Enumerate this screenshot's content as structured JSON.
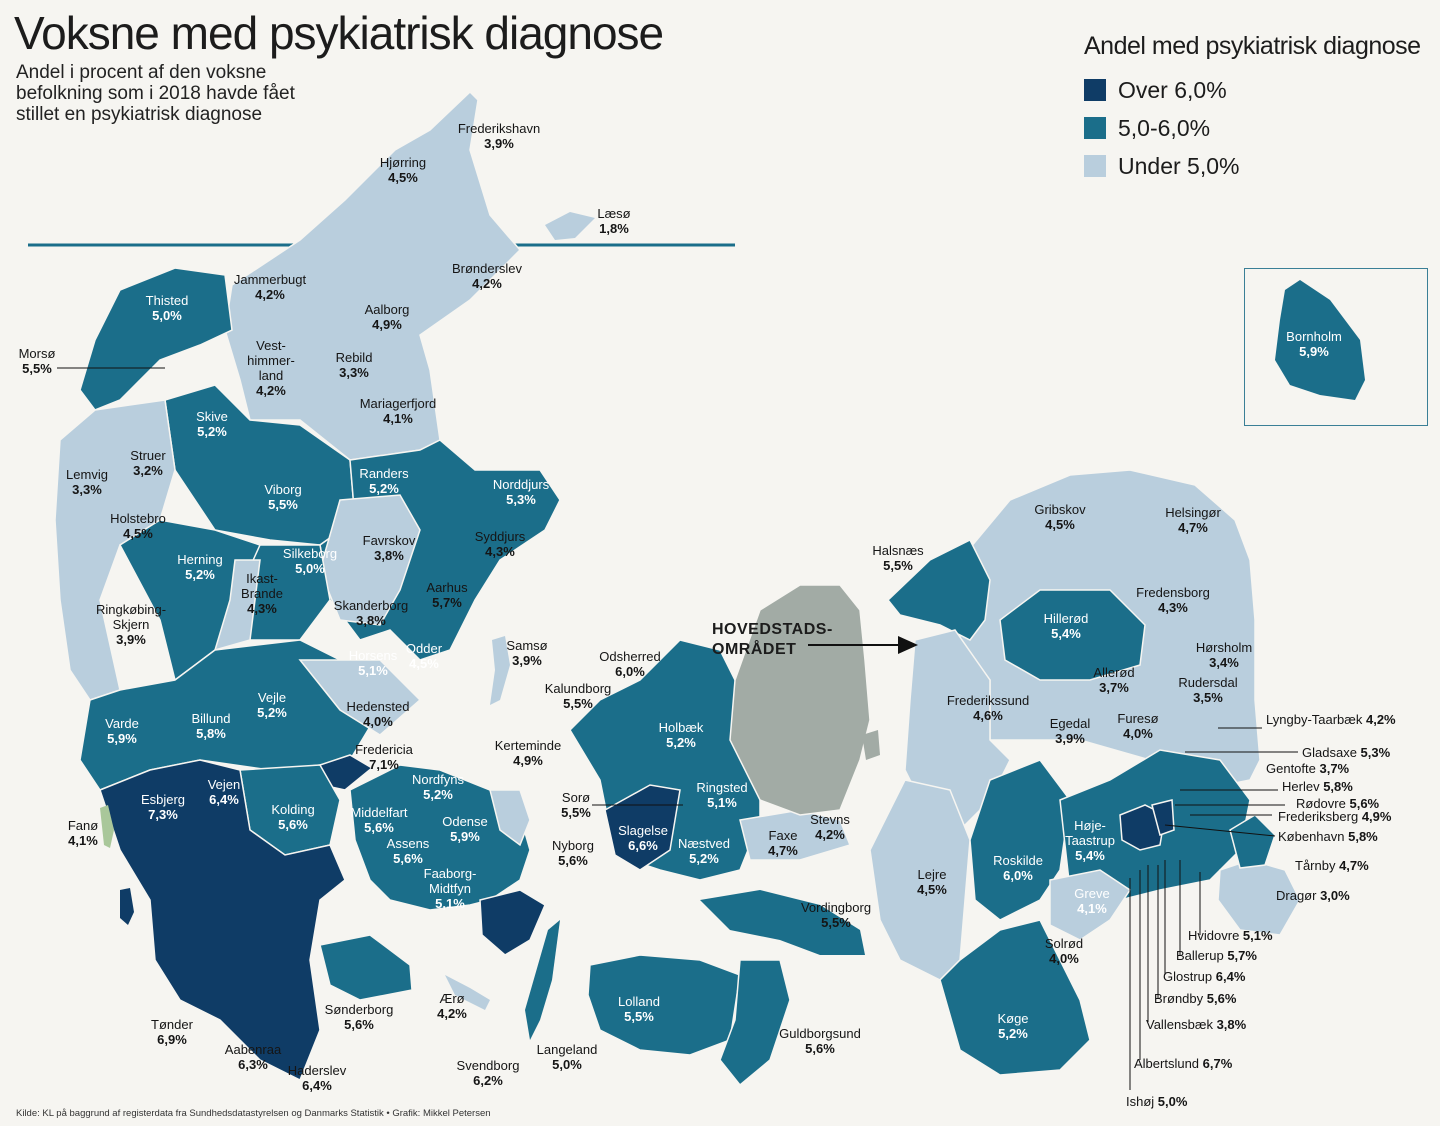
{
  "title": "Voksne med psykiatrisk diagnose",
  "subtitle": "Andel i procent af den voksne befolkning som i 2018 havde fået stillet en psykiatrisk diagnose",
  "legend": {
    "title": "Andel med psykiatrisk diagnose",
    "items": [
      {
        "label": "Over 6,0%",
        "color": "#0f3c66"
      },
      {
        "label": "5,0-6,0%",
        "color": "#1b6e8a"
      },
      {
        "label": "Under 5,0%",
        "color": "#b9cedd"
      }
    ]
  },
  "inset_label": "HOVEDSTADS-OMRÅDET",
  "source": "Kilde: KL på baggrund af registerdata fra Sundhedsdatastyrelsen og Danmarks Statistik • Grafik: Mikkel Petersen",
  "colors": {
    "high": "#0f3c66",
    "mid": "#1b6e8a",
    "low": "#b9cedd",
    "capital_area": "#a2aba5",
    "fano": "#a9c79a"
  },
  "municipalities": [
    {
      "name": "Frederikshavn",
      "value": "3,9%"
    },
    {
      "name": "Hjørring",
      "value": "4,5%"
    },
    {
      "name": "Læsø",
      "value": "1,8%"
    },
    {
      "name": "Jammerbugt",
      "value": "4,2%"
    },
    {
      "name": "Brønderslev",
      "value": "4,2%"
    },
    {
      "name": "Thisted",
      "value": "5,0%"
    },
    {
      "name": "Aalborg",
      "value": "4,9%"
    },
    {
      "name": "Morsø",
      "value": "5,5%"
    },
    {
      "name": "Vest-himmer-land",
      "value": "4,2%"
    },
    {
      "name": "Rebild",
      "value": "3,3%"
    },
    {
      "name": "Mariagerfjord",
      "value": "4,1%"
    },
    {
      "name": "Skive",
      "value": "5,2%"
    },
    {
      "name": "Struer",
      "value": "3,2%"
    },
    {
      "name": "Lemvig",
      "value": "3,3%"
    },
    {
      "name": "Randers",
      "value": "5,2%"
    },
    {
      "name": "Norddjurs",
      "value": "5,3%"
    },
    {
      "name": "Viborg",
      "value": "5,5%"
    },
    {
      "name": "Holstebro",
      "value": "4,5%"
    },
    {
      "name": "Syddjurs",
      "value": "4,3%"
    },
    {
      "name": "Favrskov",
      "value": "3,8%"
    },
    {
      "name": "Herning",
      "value": "5,2%"
    },
    {
      "name": "Silkeborg",
      "value": "5,0%"
    },
    {
      "name": "Ikast-Brande",
      "value": "4,3%"
    },
    {
      "name": "Aarhus",
      "value": "5,7%"
    },
    {
      "name": "Ringkøbing-Skjern",
      "value": "3,9%"
    },
    {
      "name": "Skanderborg",
      "value": "3,8%"
    },
    {
      "name": "Horsens",
      "value": "5,1%"
    },
    {
      "name": "Odder",
      "value": "4,5%"
    },
    {
      "name": "Samsø",
      "value": "3,9%"
    },
    {
      "name": "Odsherred",
      "value": "6,0%"
    },
    {
      "name": "Hedensted",
      "value": "4,0%"
    },
    {
      "name": "Vejle",
      "value": "5,2%"
    },
    {
      "name": "Billund",
      "value": "5,8%"
    },
    {
      "name": "Varde",
      "value": "5,9%"
    },
    {
      "name": "Kalundborg",
      "value": "5,5%"
    },
    {
      "name": "Holbæk",
      "value": "5,2%"
    },
    {
      "name": "Fredericia",
      "value": "7,1%"
    },
    {
      "name": "Kerteminde",
      "value": "4,9%"
    },
    {
      "name": "Vejen",
      "value": "6,4%"
    },
    {
      "name": "Nordfyns",
      "value": "5,2%"
    },
    {
      "name": "Esbjerg",
      "value": "7,3%"
    },
    {
      "name": "Kolding",
      "value": "5,6%"
    },
    {
      "name": "Middelfart",
      "value": "5,6%"
    },
    {
      "name": "Odense",
      "value": "5,9%"
    },
    {
      "name": "Sorø",
      "value": "5,5%"
    },
    {
      "name": "Ringsted",
      "value": "5,1%"
    },
    {
      "name": "Slagelse",
      "value": "6,6%"
    },
    {
      "name": "Stevns",
      "value": "4,2%"
    },
    {
      "name": "Faxe",
      "value": "4,7%"
    },
    {
      "name": "Fanø",
      "value": "4,1%"
    },
    {
      "name": "Assens",
      "value": "5,6%"
    },
    {
      "name": "Nyborg",
      "value": "5,6%"
    },
    {
      "name": "Næstved",
      "value": "5,2%"
    },
    {
      "name": "Faaborg-Midtfyn",
      "value": "5,1%"
    },
    {
      "name": "Vordingborg",
      "value": "5,5%"
    },
    {
      "name": "Tønder",
      "value": "6,9%"
    },
    {
      "name": "Sønderborg",
      "value": "5,6%"
    },
    {
      "name": "Ærø",
      "value": "4,2%"
    },
    {
      "name": "Lolland",
      "value": "5,5%"
    },
    {
      "name": "Guldborgsund",
      "value": "5,6%"
    },
    {
      "name": "Aabenraa",
      "value": "6,3%"
    },
    {
      "name": "Langeland",
      "value": "5,0%"
    },
    {
      "name": "Haderslev",
      "value": "6,4%"
    },
    {
      "name": "Svendborg",
      "value": "6,2%"
    },
    {
      "name": "Bornholm",
      "value": "5,9%"
    },
    {
      "name": "Gribskov",
      "value": "4,5%"
    },
    {
      "name": "Helsingør",
      "value": "4,7%"
    },
    {
      "name": "Halsnæs",
      "value": "5,5%"
    },
    {
      "name": "Fredensborg",
      "value": "4,3%"
    },
    {
      "name": "Hillerød",
      "value": "5,4%"
    },
    {
      "name": "Hørsholm",
      "value": "3,4%"
    },
    {
      "name": "Allerød",
      "value": "3,7%"
    },
    {
      "name": "Rudersdal",
      "value": "3,5%"
    },
    {
      "name": "Frederikssund",
      "value": "4,6%"
    },
    {
      "name": "Egedal",
      "value": "3,9%"
    },
    {
      "name": "Furesø",
      "value": "4,0%"
    },
    {
      "name": "Lyngby-Taarbæk",
      "value": "4,2%"
    },
    {
      "name": "Gladsaxe",
      "value": "5,3%"
    },
    {
      "name": "Gentofte",
      "value": "3,7%"
    },
    {
      "name": "Herlev",
      "value": "5,8%"
    },
    {
      "name": "Rødovre",
      "value": "5,6%"
    },
    {
      "name": "Frederiksberg",
      "value": "4,9%"
    },
    {
      "name": "København",
      "value": "5,8%"
    },
    {
      "name": "Høje-Taastrup",
      "value": "5,4%"
    },
    {
      "name": "Roskilde",
      "value": "6,0%"
    },
    {
      "name": "Lejre",
      "value": "4,5%"
    },
    {
      "name": "Tårnby",
      "value": "4,7%"
    },
    {
      "name": "Dragør",
      "value": "3,0%"
    },
    {
      "name": "Greve",
      "value": "4,1%"
    },
    {
      "name": "Hvidovre",
      "value": "5,1%"
    },
    {
      "name": "Ballerup",
      "value": "5,7%"
    },
    {
      "name": "Solrød",
      "value": "4,0%"
    },
    {
      "name": "Glostrup",
      "value": "6,4%"
    },
    {
      "name": "Brøndby",
      "value": "5,6%"
    },
    {
      "name": "Vallensbæk",
      "value": "3,8%"
    },
    {
      "name": "Køge",
      "value": "5,2%"
    },
    {
      "name": "Albertslund",
      "value": "6,7%"
    },
    {
      "name": "Ishøj",
      "value": "5,0%"
    }
  ]
}
